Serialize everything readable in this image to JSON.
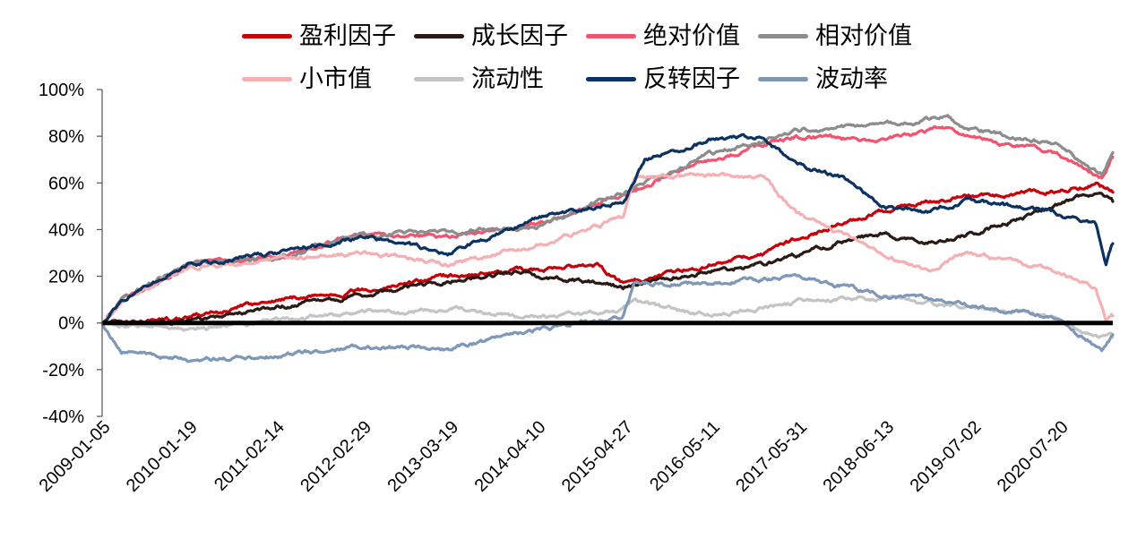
{
  "chart_data": {
    "type": "line",
    "title": "",
    "xlabel": "",
    "ylabel": "",
    "ylim": [
      -0.4,
      1.0
    ],
    "y_ticks": [
      -0.4,
      -0.2,
      0.0,
      0.2,
      0.4,
      0.6,
      0.8,
      1.0
    ],
    "y_tick_labels": [
      "-40%",
      "-20%",
      "0%",
      "20%",
      "40%",
      "60%",
      "80%",
      "100%"
    ],
    "x_tick_labels": [
      "2009-01-05",
      "2010-01-19",
      "2011-02-14",
      "2012-02-29",
      "2013-03-19",
      "2014-04-10",
      "2015-04-27",
      "2016-05-11",
      "2017-05-31",
      "2018-06-13",
      "2019-07-02",
      "2020-07-20"
    ],
    "x_start": "2009-01-05",
    "x_end": "2021-03-31",
    "legend_position": "top",
    "grid": false,
    "series": [
      {
        "name": "盈利因子",
        "color": "#C8000A",
        "points": [
          [
            "2009-01-05",
            0.0
          ],
          [
            "2010-01-19",
            0.02
          ],
          [
            "2011-02-14",
            0.1
          ],
          [
            "2012-02-29",
            0.14
          ],
          [
            "2013-03-19",
            0.2
          ],
          [
            "2014-04-10",
            0.23
          ],
          [
            "2015-01-15",
            0.24
          ],
          [
            "2015-04-27",
            0.17
          ],
          [
            "2015-12-01",
            0.22
          ],
          [
            "2016-05-11",
            0.25
          ],
          [
            "2017-01-01",
            0.29
          ],
          [
            "2017-05-31",
            0.36
          ],
          [
            "2017-12-01",
            0.42
          ],
          [
            "2018-06-13",
            0.48
          ],
          [
            "2019-01-01",
            0.52
          ],
          [
            "2019-07-02",
            0.54
          ],
          [
            "2020-01-01",
            0.55
          ],
          [
            "2020-07-20",
            0.57
          ],
          [
            "2021-01-15",
            0.59
          ],
          [
            "2021-03-31",
            0.56
          ]
        ]
      },
      {
        "name": "成长因子",
        "color": "#2A1A16",
        "points": [
          [
            "2009-01-05",
            0.0
          ],
          [
            "2010-01-19",
            0.01
          ],
          [
            "2011-02-14",
            0.07
          ],
          [
            "2012-02-29",
            0.12
          ],
          [
            "2013-03-19",
            0.18
          ],
          [
            "2014-01-01",
            0.22
          ],
          [
            "2014-04-10",
            0.2
          ],
          [
            "2015-01-15",
            0.17
          ],
          [
            "2015-04-27",
            0.15
          ],
          [
            "2015-08-01",
            0.18
          ],
          [
            "2016-05-11",
            0.22
          ],
          [
            "2017-01-01",
            0.25
          ],
          [
            "2017-05-31",
            0.29
          ],
          [
            "2018-01-01",
            0.35
          ],
          [
            "2018-06-13",
            0.38
          ],
          [
            "2019-01-01",
            0.34
          ],
          [
            "2019-07-02",
            0.38
          ],
          [
            "2020-01-01",
            0.43
          ],
          [
            "2020-07-20",
            0.5
          ],
          [
            "2021-01-15",
            0.56
          ],
          [
            "2021-03-31",
            0.52
          ]
        ]
      },
      {
        "name": "绝对价值",
        "color": "#F2536E",
        "points": [
          [
            "2009-01-05",
            0.0
          ],
          [
            "2009-04-01",
            0.1
          ],
          [
            "2010-01-19",
            0.25
          ],
          [
            "2011-02-14",
            0.28
          ],
          [
            "2012-02-29",
            0.38
          ],
          [
            "2013-03-19",
            0.37
          ],
          [
            "2014-04-10",
            0.42
          ],
          [
            "2015-04-27",
            0.55
          ],
          [
            "2016-05-11",
            0.7
          ],
          [
            "2017-05-31",
            0.8
          ],
          [
            "2018-06-13",
            0.78
          ],
          [
            "2019-04-01",
            0.84
          ],
          [
            "2019-07-02",
            0.8
          ],
          [
            "2020-07-20",
            0.73
          ],
          [
            "2021-02-10",
            0.62
          ],
          [
            "2021-03-31",
            0.71
          ]
        ]
      },
      {
        "name": "相对价值",
        "color": "#8C8C8C",
        "points": [
          [
            "2009-01-05",
            0.0
          ],
          [
            "2009-04-01",
            0.1
          ],
          [
            "2010-01-19",
            0.26
          ],
          [
            "2011-02-14",
            0.28
          ],
          [
            "2012-02-29",
            0.38
          ],
          [
            "2013-03-19",
            0.39
          ],
          [
            "2014-04-10",
            0.41
          ],
          [
            "2015-04-27",
            0.56
          ],
          [
            "2016-05-11",
            0.72
          ],
          [
            "2017-05-31",
            0.82
          ],
          [
            "2018-06-13",
            0.85
          ],
          [
            "2019-04-01",
            0.88
          ],
          [
            "2019-07-02",
            0.83
          ],
          [
            "2020-07-20",
            0.77
          ],
          [
            "2021-02-10",
            0.64
          ],
          [
            "2021-03-31",
            0.73
          ]
        ]
      },
      {
        "name": "小市值",
        "color": "#F5B0B3",
        "points": [
          [
            "2009-01-05",
            0.0
          ],
          [
            "2009-04-01",
            0.09
          ],
          [
            "2010-01-19",
            0.24
          ],
          [
            "2011-02-14",
            0.27
          ],
          [
            "2012-02-29",
            0.3
          ],
          [
            "2013-03-19",
            0.25
          ],
          [
            "2014-04-10",
            0.33
          ],
          [
            "2015-04-27",
            0.45
          ],
          [
            "2015-06-15",
            0.62
          ],
          [
            "2016-05-11",
            0.63
          ],
          [
            "2017-01-01",
            0.63
          ],
          [
            "2017-05-31",
            0.47
          ],
          [
            "2018-06-13",
            0.3
          ],
          [
            "2019-01-01",
            0.22
          ],
          [
            "2019-07-02",
            0.3
          ],
          [
            "2020-07-20",
            0.22
          ],
          [
            "2021-01-15",
            0.15
          ],
          [
            "2021-03-01",
            0.0
          ],
          [
            "2021-03-31",
            0.03
          ]
        ]
      },
      {
        "name": "流动性",
        "color": "#C4C4C4",
        "points": [
          [
            "2009-01-05",
            0.0
          ],
          [
            "2010-01-19",
            -0.03
          ],
          [
            "2011-02-14",
            0.01
          ],
          [
            "2012-02-29",
            0.04
          ],
          [
            "2013-03-19",
            0.06
          ],
          [
            "2014-04-10",
            0.02
          ],
          [
            "2015-04-27",
            0.06
          ],
          [
            "2015-06-15",
            0.09
          ],
          [
            "2016-05-11",
            0.03
          ],
          [
            "2017-05-31",
            0.09
          ],
          [
            "2018-06-13",
            0.11
          ],
          [
            "2019-07-02",
            0.07
          ],
          [
            "2020-07-20",
            0.02
          ],
          [
            "2021-01-15",
            -0.05
          ],
          [
            "2021-03-31",
            -0.06
          ]
        ]
      },
      {
        "name": "反转因子",
        "color": "#0C3260",
        "points": [
          [
            "2009-01-05",
            0.0
          ],
          [
            "2009-04-01",
            0.1
          ],
          [
            "2010-01-19",
            0.25
          ],
          [
            "2011-02-14",
            0.3
          ],
          [
            "2012-02-29",
            0.37
          ],
          [
            "2013-03-19",
            0.3
          ],
          [
            "2014-04-10",
            0.45
          ],
          [
            "2015-04-27",
            0.52
          ],
          [
            "2015-08-01",
            0.7
          ],
          [
            "2016-05-11",
            0.78
          ],
          [
            "2017-01-01",
            0.8
          ],
          [
            "2017-05-31",
            0.68
          ],
          [
            "2018-01-01",
            0.62
          ],
          [
            "2018-06-13",
            0.5
          ],
          [
            "2019-01-01",
            0.48
          ],
          [
            "2019-07-02",
            0.53
          ],
          [
            "2020-07-20",
            0.47
          ],
          [
            "2021-01-15",
            0.42
          ],
          [
            "2021-03-01",
            0.24
          ],
          [
            "2021-03-31",
            0.34
          ]
        ]
      },
      {
        "name": "波动率",
        "color": "#7E98B8",
        "points": [
          [
            "2009-01-05",
            0.0
          ],
          [
            "2009-04-01",
            -0.12
          ],
          [
            "2010-01-19",
            -0.16
          ],
          [
            "2011-02-14",
            -0.14
          ],
          [
            "2012-02-29",
            -0.1
          ],
          [
            "2013-03-19",
            -0.11
          ],
          [
            "2014-04-10",
            -0.03
          ],
          [
            "2015-04-27",
            0.03
          ],
          [
            "2015-06-15",
            0.17
          ],
          [
            "2016-05-11",
            0.17
          ],
          [
            "2017-05-31",
            0.2
          ],
          [
            "2018-06-13",
            0.12
          ],
          [
            "2019-07-02",
            0.08
          ],
          [
            "2020-07-20",
            0.02
          ],
          [
            "2021-02-10",
            -0.12
          ],
          [
            "2021-03-31",
            -0.05
          ]
        ]
      }
    ]
  }
}
